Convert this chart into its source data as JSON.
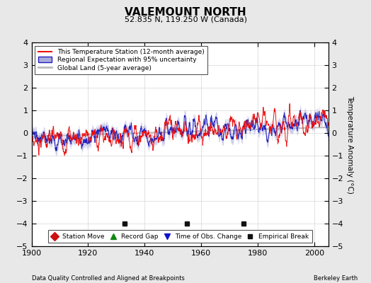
{
  "title": "VALEMOUNT NORTH",
  "subtitle": "52.835 N, 119.250 W (Canada)",
  "ylabel": "Temperature Anomaly (°C)",
  "xlabel_left": "Data Quality Controlled and Aligned at Breakpoints",
  "xlabel_right": "Berkeley Earth",
  "ylim": [
    -5,
    4
  ],
  "xlim": [
    1900,
    2005
  ],
  "xticks": [
    1900,
    1920,
    1940,
    1960,
    1980,
    2000
  ],
  "yticks": [
    -5,
    -4,
    -3,
    -2,
    -1,
    0,
    1,
    2,
    3,
    4
  ],
  "background_color": "#e8e8e8",
  "plot_bg_color": "#ffffff",
  "red_color": "#ee1111",
  "blue_color": "#2222bb",
  "blue_fill_color": "#aaaadd",
  "gray_color": "#bbbbbb",
  "marker_colors": {
    "station_move": "#cc1111",
    "record_gap": "#118811",
    "time_obs": "#1111cc",
    "empirical_break": "#111111"
  },
  "empirical_breaks": [
    1933,
    1955,
    1975
  ],
  "empirical_break_y": -4.0,
  "legend_entries": [
    "This Temperature Station (12-month average)",
    "Regional Expectation with 95% uncertainty",
    "Global Land (5-year average)"
  ],
  "marker_legend_entries": [
    "Station Move",
    "Record Gap",
    "Time of Obs. Change",
    "Empirical Break"
  ]
}
